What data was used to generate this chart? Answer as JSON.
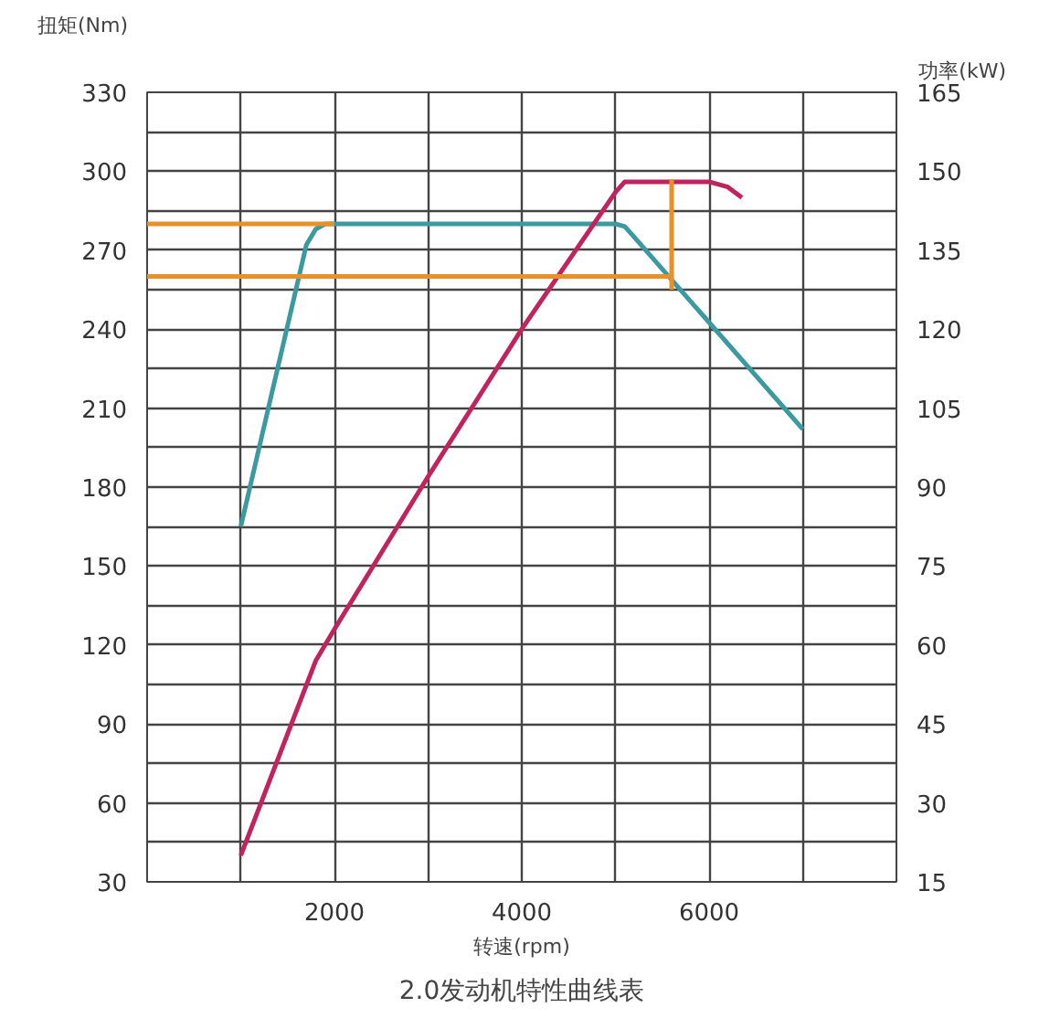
{
  "chart_data": {
    "type": "line",
    "title": "2.0发动机特性曲线表",
    "xlabel": "转速(rpm)",
    "ylabel": "扭矩(Nm)",
    "y2label": "功率(kW)",
    "xlim": [
      0,
      8000
    ],
    "ylim": [
      30,
      330
    ],
    "y2lim": [
      15,
      165
    ],
    "xticks": [
      {
        "value": 0,
        "label": null
      },
      {
        "value": 1000,
        "label": null
      },
      2000,
      {
        "value": 3000,
        "label": null
      },
      4000,
      {
        "value": 5000,
        "label": null
      },
      6000,
      {
        "value": 7000,
        "label": null
      },
      {
        "value": 8000,
        "label": null
      }
    ],
    "yticks": [
      30,
      {
        "value": 45,
        "label": null
      },
      60,
      {
        "value": 75,
        "label": null
      },
      90,
      {
        "value": 105,
        "label": null
      },
      120,
      {
        "value": 135,
        "label": null
      },
      150,
      {
        "value": 165,
        "label": null
      },
      180,
      {
        "value": 195,
        "label": null
      },
      210,
      {
        "value": 225,
        "label": null
      },
      240,
      {
        "value": 255,
        "label": null
      },
      270,
      {
        "value": 285,
        "label": null
      },
      300,
      {
        "value": 315,
        "label": null
      },
      330
    ],
    "y2ticks": [
      15,
      30,
      45,
      60,
      75,
      90,
      105,
      120,
      135,
      150,
      165
    ],
    "grid": true,
    "line_style": "solid",
    "series": [
      {
        "color": "#3a9aa0",
        "x": [
          1000,
          1700,
          1800,
          1900,
          5000,
          5100,
          5200,
          7000
        ],
        "values": [
          165,
          272,
          278,
          280,
          280,
          279,
          275,
          202
        ]
      },
      {
        "color": "#c0245e",
        "axis": "y2",
        "x": [
          1000,
          1800,
          2000,
          3000,
          4000,
          5000,
          5100,
          6000,
          6200,
          6350
        ],
        "values": [
          20,
          57,
          63,
          92,
          120,
          146,
          148,
          148,
          147,
          145
        ]
      },
      {
        "color": "#e8902a",
        "x": [
          0,
          2000
        ],
        "values": [
          280,
          280
        ]
      },
      {
        "color": "#e8902a",
        "x": [
          0,
          5600
        ],
        "values": [
          260,
          260
        ]
      },
      {
        "color": "#e8902a",
        "x": [
          5600,
          5600
        ],
        "values": [
          255,
          297
        ]
      }
    ]
  }
}
